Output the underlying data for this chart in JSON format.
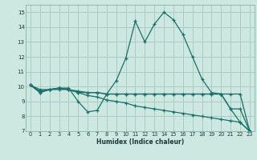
{
  "xlabel": "Humidex (Indice chaleur)",
  "background_color": "#cce8e0",
  "grid_color": "#aaccc4",
  "line_color": "#1a7068",
  "x_values": [
    0,
    1,
    2,
    3,
    4,
    5,
    6,
    7,
    8,
    9,
    10,
    11,
    12,
    13,
    14,
    15,
    16,
    17,
    18,
    19,
    20,
    21,
    22,
    23
  ],
  "series": [
    [
      10.1,
      9.6,
      9.8,
      9.9,
      9.9,
      9.0,
      8.3,
      8.4,
      9.5,
      10.4,
      11.9,
      14.4,
      13.0,
      14.2,
      15.0,
      14.5,
      13.5,
      12.0,
      10.5,
      9.6,
      9.5,
      8.5,
      7.6,
      7.0
    ],
    [
      10.1,
      9.6,
      9.8,
      9.9,
      9.8,
      9.6,
      9.6,
      9.6,
      9.5,
      9.5,
      9.5,
      9.5,
      9.5,
      9.5,
      9.5,
      9.5,
      9.5,
      9.5,
      9.5,
      9.5,
      9.5,
      8.5,
      8.5,
      7.0
    ],
    [
      10.1,
      9.8,
      9.8,
      9.9,
      9.8,
      9.7,
      9.6,
      9.6,
      9.5,
      9.5,
      9.5,
      9.5,
      9.5,
      9.5,
      9.5,
      9.5,
      9.5,
      9.5,
      9.5,
      9.5,
      9.5,
      9.5,
      9.5,
      7.0
    ],
    [
      10.1,
      9.7,
      9.8,
      9.8,
      9.8,
      9.6,
      9.4,
      9.3,
      9.1,
      9.0,
      8.9,
      8.7,
      8.6,
      8.5,
      8.4,
      8.3,
      8.2,
      8.1,
      8.0,
      7.9,
      7.8,
      7.7,
      7.6,
      7.0
    ]
  ],
  "ylim": [
    7,
    15.5
  ],
  "xlim": [
    -0.5,
    23.5
  ],
  "yticks": [
    7,
    8,
    9,
    10,
    11,
    12,
    13,
    14,
    15
  ],
  "xticks": [
    0,
    1,
    2,
    3,
    4,
    5,
    6,
    7,
    8,
    9,
    10,
    11,
    12,
    13,
    14,
    15,
    16,
    17,
    18,
    19,
    20,
    21,
    22,
    23
  ]
}
